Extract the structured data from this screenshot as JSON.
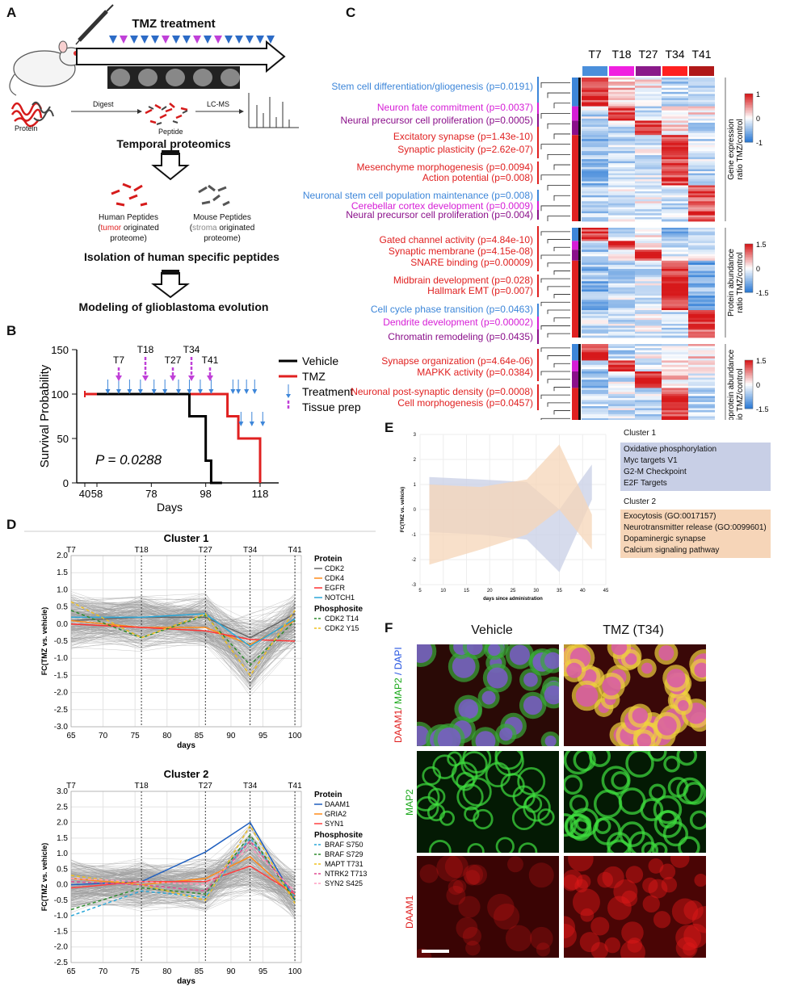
{
  "panelA": {
    "label": "A",
    "title": "TMZ treatment",
    "protein": "Protein",
    "digest": "Digest",
    "peptide": "Peptide",
    "lcms": "LC-MS",
    "temporal": "Temporal proteomics",
    "human_peptides": "Human Peptides",
    "tumor_word": "tumor",
    "originated": " originated",
    "proteome": "proteome)",
    "mouse_peptides": "Mouse Peptides",
    "stroma_word": "stroma",
    "isolation": "Isolation of human specific peptides",
    "modeling": "Modeling of glioblastoma evolution"
  },
  "panelB": {
    "label": "B",
    "ylabel": "Survival Probability",
    "xlabel": "Days",
    "pvalue": "P = 0.0288",
    "timepoints": [
      "T7",
      "T18",
      "T27",
      "T34",
      "T41"
    ],
    "legend": [
      "Vehicle",
      "TMZ",
      "Treatment",
      "Tissue prep"
    ],
    "yticks": [
      "150",
      "100",
      "50",
      "0"
    ],
    "xticks": [
      "40",
      "58",
      "78",
      "98",
      "118"
    ]
  },
  "panelC": {
    "label": "C",
    "columns": [
      "T7",
      "T18",
      "T27",
      "T34",
      "T41"
    ],
    "g1": [
      {
        "t": "Stem cell differentiation/gliogenesis (p=0.0191)",
        "c": "blue"
      },
      {
        "t": "Neuron fate commitment (p=0.0037)",
        "c": "mag"
      },
      {
        "t": "Neural precursor cell proliferation (p=0.0005)",
        "c": "pur"
      },
      {
        "t": "Excitatory synapse (p=1.43e-10)",
        "c": "red"
      },
      {
        "t": "Synaptic plasticity (p=2.62e-07)",
        "c": "red"
      },
      {
        "t": "Mesenchyme morphogenesis (p=0.0094)",
        "c": "red"
      },
      {
        "t": "Action potential (p=0.008)",
        "c": "red"
      }
    ],
    "g2": [
      {
        "t": "Neuronal stem cell population maintenance (p=0.008)",
        "c": "blue"
      },
      {
        "t": "Cerebellar cortex development (p=0.0009)",
        "c": "mag"
      },
      {
        "t": "Neural precursor cell proliferation (p=0.004)",
        "c": "pur"
      },
      {
        "t": "Gated channel activity (p=4.84e-10)",
        "c": "red"
      },
      {
        "t": "Synaptic membrane (p=4.15e-08)",
        "c": "red"
      },
      {
        "t": "SNARE binding (p=0.00009)",
        "c": "red"
      },
      {
        "t": "Midbrain development (p=0.028)",
        "c": "red"
      },
      {
        "t": "Hallmark EMT (p=0.007)",
        "c": "red"
      }
    ],
    "g3": [
      {
        "t": "Cell cycle phase transition (p=0.0463)",
        "c": "blue"
      },
      {
        "t": "Dendrite development (p=0.00002)",
        "c": "mag"
      },
      {
        "t": "Chromatin remodeling (p=0.0435)",
        "c": "pur"
      },
      {
        "t": "Synapse organization (p=4.64e-06)",
        "c": "red"
      },
      {
        "t": "MAPKK activity (p=0.0384)",
        "c": "red"
      },
      {
        "t": "Neuronal post-synaptic density (p=0.0008)",
        "c": "red"
      },
      {
        "t": "Cell morphogenesis (p=0.0457)",
        "c": "red"
      }
    ],
    "scale1": {
      "title1": "Gene expression",
      "title2": "ratio TMZ/control",
      "ticks": [
        "1",
        "0",
        "-1"
      ]
    },
    "scale2": {
      "title1": "Protein abundance",
      "title2": "ratio TMZ/control",
      "ticks": [
        "1.5",
        "0",
        "-1.5"
      ]
    },
    "scale3": {
      "title1": "Phosphoprotein abundance",
      "title2": "ratio TMZ/control",
      "ticks": [
        "1.5",
        "0",
        "-1.5"
      ]
    }
  },
  "panelD": {
    "label": "D",
    "c1": {
      "title": "Cluster 1",
      "ylabel": "FC(TMZ vs. vehicle)",
      "xlabel": "days",
      "yticks": [
        "2.0",
        "1.5",
        "1.0",
        "0.5",
        "0.0",
        "-0.5",
        "-1.0",
        "-1.5",
        "-2.0",
        "-2.5",
        "-3.0"
      ],
      "xticks": [
        "65",
        "70",
        "75",
        "80",
        "85",
        "90",
        "95",
        "100"
      ],
      "tp": [
        "T7",
        "T18",
        "T27",
        "T34",
        "T41"
      ],
      "legend_protein": "Protein",
      "proteins": [
        "CDK2",
        "CDK4",
        "EGFR",
        "NOTCH1"
      ],
      "legend_phospho": "Phosphosite",
      "phospho": [
        "CDK2 T14",
        "CDK2 Y15"
      ]
    },
    "c2": {
      "title": "Cluster 2",
      "ylabel": "FC(TMZ vs. vehicle)",
      "xlabel": "days",
      "yticks": [
        "3.0",
        "2.5",
        "2.0",
        "1.5",
        "1.0",
        "0.5",
        "0.0",
        "-0.5",
        "-1.0",
        "-1.5",
        "-2.0",
        "-2.5"
      ],
      "xticks": [
        "65",
        "70",
        "75",
        "80",
        "85",
        "90",
        "95",
        "100"
      ],
      "tp": [
        "T7",
        "T18",
        "T27",
        "T34",
        "T41"
      ],
      "legend_protein": "Protein",
      "proteins": [
        "DAAM1",
        "GRIA2",
        "SYN1"
      ],
      "legend_phospho": "Phosphosite",
      "phospho": [
        "BRAF S750",
        "BRAF S729",
        "MAPT T731",
        "NTRK2 T713",
        "SYN2 S425"
      ]
    }
  },
  "panelE": {
    "label": "E",
    "ylabel": "FC(TMZ vs. vehicle)",
    "xlabel": "days since administration",
    "yticks": [
      "3",
      "2",
      "1",
      "0",
      "-1",
      "-2",
      "-3"
    ],
    "xticks": [
      "5",
      "10",
      "15",
      "20",
      "25",
      "30",
      "35",
      "40",
      "45"
    ],
    "cluster1_title": "Cluster 1",
    "cluster1_items": [
      "Oxidative phosphorylation",
      "Myc targets V1",
      "G2-M Checkpoint",
      "E2F Targets"
    ],
    "cluster2_title": "Cluster 2",
    "cluster2_items": [
      "Exocytosis (GO:0017157)",
      "Neurotransmitter release (GO:0099601)",
      "Dopaminergic synapse",
      "Calcium signaling pathway"
    ]
  },
  "panelF": {
    "label": "F",
    "col1": "Vehicle",
    "col2": "TMZ (T34)",
    "row1_a": "DAAM1",
    "row1_b": "/ MAP2",
    "row1_c": " / DAPI",
    "row2": "MAP2",
    "row3": "DAAM1"
  },
  "colors": {
    "tmz_red": "#e02020",
    "vehicle_black": "#000000",
    "treatment_blue": "#3d86d9",
    "tissue_magenta": "#c040d8",
    "heat_red": "#d7191c",
    "heat_blue": "#2c7bd6",
    "cluster1_fill": "#c8cfe6",
    "cluster2_fill": "#f6d5b8"
  },
  "chart_data": [
    {
      "type": "line",
      "title": "",
      "xlabel": "Days",
      "ylabel": "Survival Probability",
      "ylim": [
        0,
        150
      ],
      "series": [
        {
          "name": "Vehicle",
          "x": [
            58,
            92,
            92,
            98,
            98,
            100,
            100,
            104
          ],
          "values": [
            100,
            100,
            75,
            75,
            25,
            25,
            0,
            0
          ]
        },
        {
          "name": "TMZ",
          "x": [
            40,
            58,
            106,
            106,
            110,
            110,
            118,
            118
          ],
          "values": [
            100,
            100,
            100,
            75,
            75,
            50,
            50,
            0
          ]
        }
      ]
    },
    {
      "type": "line",
      "title": "Cluster 1",
      "xlabel": "days",
      "ylabel": "FC(TMZ vs. vehicle)",
      "x": [
        65,
        76,
        86,
        93,
        100
      ],
      "ylim": [
        -3.0,
        2.0
      ],
      "series": [
        {
          "name": "CDK2",
          "values": [
            0.1,
            0.2,
            0.2,
            -0.4,
            0.3
          ]
        },
        {
          "name": "CDK4",
          "values": [
            0.1,
            -0.1,
            -0.1,
            -0.6,
            0.1
          ]
        },
        {
          "name": "EGFR",
          "values": [
            0.0,
            -0.1,
            -0.2,
            -0.45,
            -0.5
          ]
        },
        {
          "name": "NOTCH1",
          "values": [
            0.2,
            0.2,
            0.3,
            -0.65,
            0.15
          ]
        },
        {
          "name": "CDK2 T14",
          "values": [
            0.4,
            -0.4,
            0.25,
            -1.2,
            0.1
          ]
        },
        {
          "name": "CDK2 Y15",
          "values": [
            0.65,
            -0.4,
            0.3,
            -1.5,
            0.4
          ]
        }
      ]
    },
    {
      "type": "line",
      "title": "Cluster 2",
      "xlabel": "days",
      "ylabel": "FC(TMZ vs. vehicle)",
      "x": [
        65,
        76,
        86,
        93,
        100
      ],
      "ylim": [
        -2.5,
        3.0
      ],
      "series": [
        {
          "name": "DAAM1",
          "values": [
            0.0,
            0.1,
            1.05,
            2.0,
            -0.5
          ]
        },
        {
          "name": "GRIA2",
          "values": [
            0.2,
            0.0,
            0.2,
            0.9,
            -0.4
          ]
        },
        {
          "name": "SYN1",
          "values": [
            -0.1,
            0.1,
            0.1,
            0.6,
            -0.3
          ]
        },
        {
          "name": "BRAF S750",
          "values": [
            -1.0,
            -0.2,
            -0.4,
            1.5,
            -0.4
          ]
        },
        {
          "name": "BRAF S729",
          "values": [
            -0.8,
            -0.1,
            -0.3,
            1.6,
            -0.5
          ]
        },
        {
          "name": "MAPT T731",
          "values": [
            0.3,
            0.0,
            -0.5,
            1.9,
            -0.6
          ]
        },
        {
          "name": "NTRK2 T713",
          "values": [
            0.1,
            0.0,
            -0.2,
            1.4,
            -0.3
          ]
        },
        {
          "name": "SYN2 S425",
          "values": [
            0.2,
            0.1,
            0.0,
            1.2,
            -0.2
          ]
        }
      ]
    },
    {
      "type": "area",
      "title": "",
      "xlabel": "days since administration",
      "ylabel": "FC(TMZ vs. vehicle)",
      "ylim": [
        -3,
        3
      ],
      "x": [
        7,
        18,
        28,
        35,
        42
      ],
      "series": [
        {
          "name": "Cluster 1",
          "upper": [
            1.3,
            1.2,
            1.1,
            0.0,
            1.8
          ],
          "lower": [
            -0.9,
            -1.0,
            -1.2,
            -2.5,
            0.4
          ]
        },
        {
          "name": "Cluster 2",
          "upper": [
            1.0,
            0.9,
            1.2,
            2.6,
            -0.2
          ],
          "lower": [
            -2.2,
            -1.6,
            -1.0,
            0.0,
            -1.6
          ]
        }
      ]
    }
  ]
}
